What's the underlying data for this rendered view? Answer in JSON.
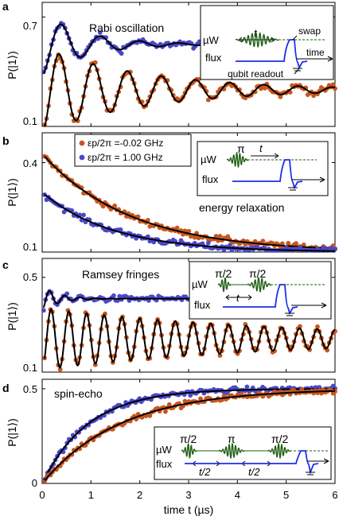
{
  "colors": {
    "orange": "#c8561e",
    "blue": "#4a48c8",
    "fit": "#000000",
    "pulse_green": "#1f5e12",
    "flux_blue": "#1f2ee8"
  },
  "x_axis": {
    "label": "time t (µs)",
    "xlim": [
      0,
      6
    ],
    "ticks": [
      "0",
      "1",
      "2",
      "3",
      "4",
      "5",
      "6"
    ]
  },
  "panels": [
    {
      "letter": "a",
      "title": "Rabi oscillation",
      "ylabel": "P(|1⟩)",
      "yticks": [
        {
          "v": 0.1,
          "t": "0.1"
        },
        {
          "v": 0.7,
          "t": "0.7"
        }
      ],
      "inset": {
        "uw": "µW",
        "flux": "flux",
        "t": "t",
        "swap": "swap",
        "time": "time",
        "readout": "qubit readout"
      }
    },
    {
      "letter": "b",
      "title": "energy relaxation",
      "ylabel": "P(|1⟩)",
      "yticks": [
        {
          "v": 0.1,
          "t": "0.1"
        },
        {
          "v": 0.4,
          "t": "0.4"
        }
      ],
      "legend": [
        {
          "label": "εp/2π =-0.02 GHz",
          "color": "orange"
        },
        {
          "label": "εp/2π = 1.00 GHz",
          "color": "blue"
        }
      ],
      "inset": {
        "uw": "µW",
        "flux": "flux",
        "pi": "π",
        "t": "t"
      }
    },
    {
      "letter": "c",
      "title": "Ramsey fringes",
      "ylabel": "P(|1⟩)",
      "yticks": [
        {
          "v": 0.1,
          "t": "0.1"
        },
        {
          "v": 0.5,
          "t": "0.5"
        }
      ],
      "inset": {
        "uw": "µW",
        "flux": "flux",
        "pi2a": "π/2",
        "pi2b": "π/2",
        "t": "t"
      }
    },
    {
      "letter": "d",
      "title": "spin-echo",
      "ylabel": "P(|1⟩)",
      "yticks": [
        {
          "v": 0,
          "t": "0"
        },
        {
          "v": 0.5,
          "t": "0.5"
        }
      ],
      "inset": {
        "uw": "µW",
        "flux": "flux",
        "pi2a": "π/2",
        "pi": "π",
        "pi2b": "π/2",
        "t2a": "t/2",
        "t2b": "t/2"
      }
    }
  ],
  "chart_data": [
    {
      "type": "scatter",
      "panel": "a",
      "ylim": [
        0.1,
        0.78
      ],
      "series": [
        {
          "color": "blue",
          "model": "damped_cos",
          "params": {
            "c": 0.55,
            "a": -0.17,
            "f": 1.25,
            "tau": 0.9
          },
          "x_range": [
            0.03,
            3.3
          ]
        },
        {
          "color": "orange",
          "model": "damped_cos",
          "params": {
            "c": 0.3,
            "a": -0.23,
            "f": 1.43,
            "tau": 2.2
          },
          "x_range": [
            0.05,
            6.0
          ]
        }
      ]
    },
    {
      "type": "scatter",
      "panel": "b",
      "ylim": [
        0.1,
        0.5
      ],
      "series": [
        {
          "name": "εp/2π =-0.02 GHz",
          "color": "orange",
          "model": "exp_decay",
          "params": {
            "c": 0.1,
            "a": 0.33,
            "tau": 1.8
          },
          "x_range": [
            0.05,
            6.0
          ]
        },
        {
          "name": "εp/2π = 1.00 GHz",
          "color": "blue",
          "model": "exp_decay",
          "params": {
            "c": 0.1,
            "a": 0.2,
            "tau": 1.45
          },
          "x_range": [
            0.05,
            6.0
          ]
        }
      ]
    },
    {
      "type": "scatter",
      "panel": "c",
      "ylim": [
        0.1,
        0.58
      ],
      "series": [
        {
          "color": "blue",
          "model": "damped_cos",
          "params": {
            "c": 0.41,
            "a": -0.05,
            "f": 3.2,
            "tau": 0.35
          },
          "x_range": [
            0.03,
            3.3
          ]
        },
        {
          "color": "orange",
          "model": "damped_cos",
          "params": {
            "c": 0.24,
            "a": -0.13,
            "f": 2.75,
            "tau": 5.0
          },
          "x_range": [
            0.05,
            6.0
          ]
        }
      ]
    },
    {
      "type": "scatter",
      "panel": "d",
      "ylim": [
        0,
        0.55
      ],
      "series": [
        {
          "color": "blue",
          "model": "rise",
          "params": {
            "c": 0.5,
            "tau": 0.95
          },
          "x_range": [
            0.03,
            6.0
          ]
        },
        {
          "color": "orange",
          "model": "rise",
          "params": {
            "c": 0.5,
            "tau": 1.6
          },
          "x_range": [
            0.05,
            6.0
          ]
        }
      ]
    }
  ]
}
